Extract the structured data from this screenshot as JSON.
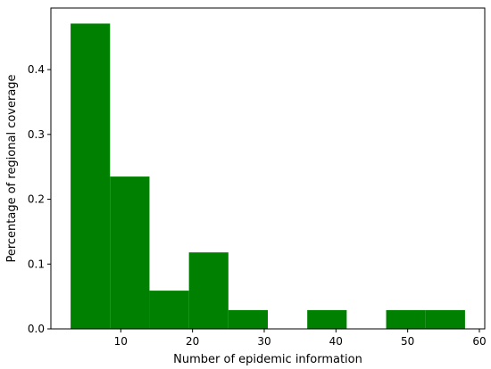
{
  "chart_data": {
    "type": "bar",
    "subtype": "histogram",
    "title": "",
    "xlabel": "Number of epidemic information",
    "ylabel": "Percentage of regional coverage",
    "color": "#008000",
    "bins": [
      {
        "start": 3,
        "end": 8.5,
        "value": 0.471
      },
      {
        "start": 8.5,
        "end": 14,
        "value": 0.235
      },
      {
        "start": 14,
        "end": 19.5,
        "value": 0.059
      },
      {
        "start": 19.5,
        "end": 25,
        "value": 0.118
      },
      {
        "start": 25,
        "end": 30.5,
        "value": 0.029
      },
      {
        "start": 30.5,
        "end": 36,
        "value": 0.0
      },
      {
        "start": 36,
        "end": 41.5,
        "value": 0.029
      },
      {
        "start": 41.5,
        "end": 47,
        "value": 0.0
      },
      {
        "start": 47,
        "end": 52.5,
        "value": 0.029
      },
      {
        "start": 52.5,
        "end": 58,
        "value": 0.029
      }
    ],
    "xlim": [
      0.25,
      60.75
    ],
    "ylim": [
      0,
      0.495
    ],
    "xticks": [
      10,
      20,
      30,
      40,
      50,
      60
    ],
    "xtick_labels": [
      "10",
      "20",
      "30",
      "40",
      "50",
      "60"
    ],
    "yticks": [
      0.0,
      0.1,
      0.2,
      0.3,
      0.4
    ],
    "ytick_labels": [
      "0.0",
      "0.1",
      "0.2",
      "0.3",
      "0.4"
    ],
    "grid": false,
    "legend": "none"
  }
}
